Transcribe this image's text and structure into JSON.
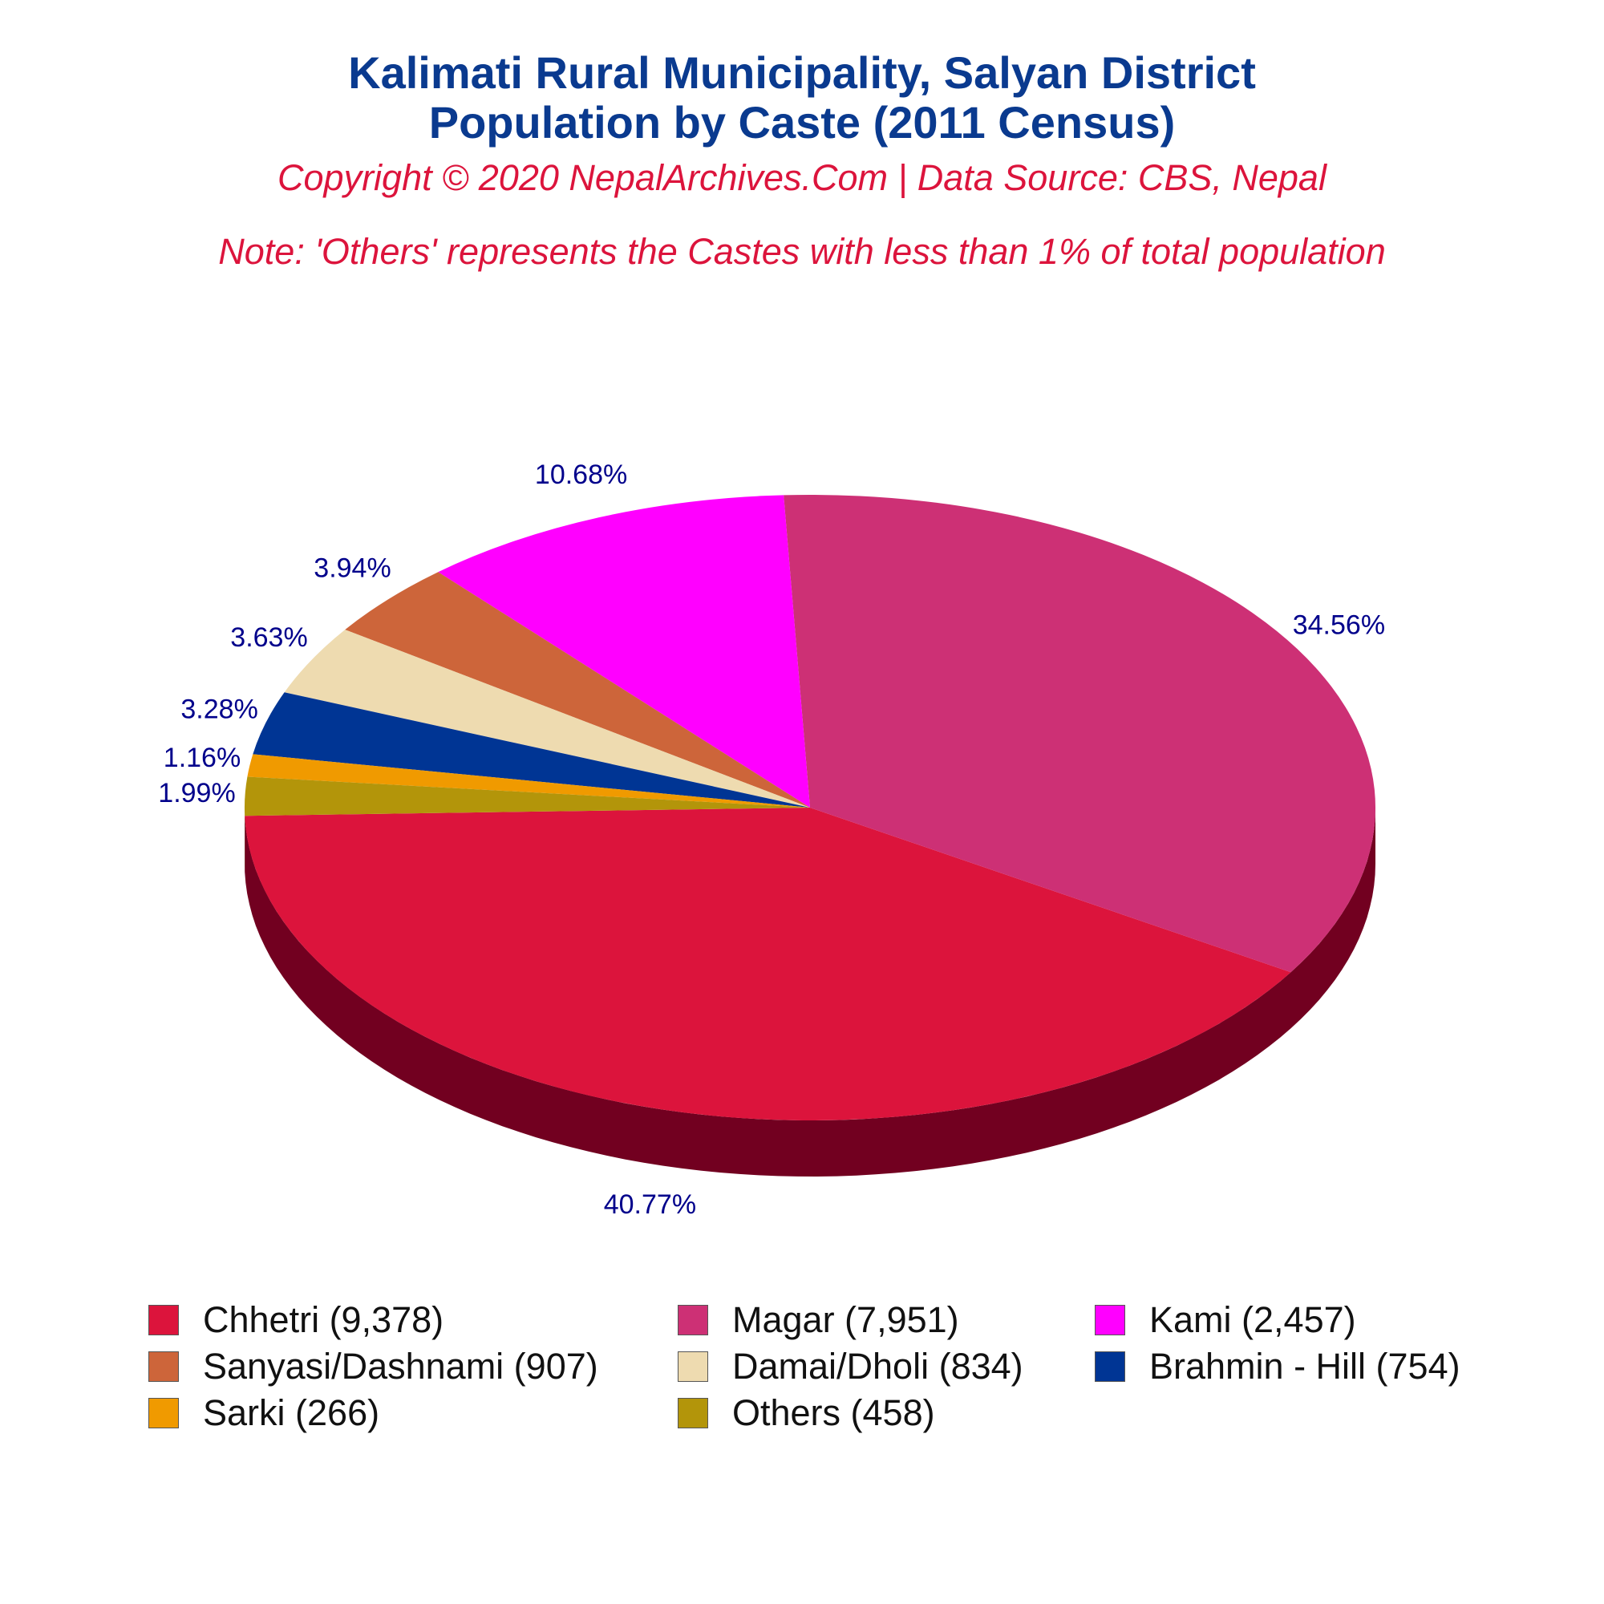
{
  "header": {
    "title_line1": "Kalimati Rural Municipality, Salyan District",
    "title_line2": "Population by Caste (2011 Census)",
    "copyright": "Copyright © 2020 NepalArchives.Com | Data Source: CBS, Nepal",
    "note": "Note: 'Others' represents the Castes with less than 1% of total population"
  },
  "chart_data": {
    "type": "pie",
    "style": "3d",
    "slices": [
      {
        "name": "Chhetri",
        "value": 9378,
        "percent_label": "40.77%",
        "color": "#dc143c",
        "side_color": "#720020"
      },
      {
        "name": "Magar",
        "value": 7951,
        "percent_label": "34.56%",
        "color": "#cd3075",
        "side_color": "#720020"
      },
      {
        "name": "Kami",
        "value": 2457,
        "percent_label": "10.68%",
        "color": "#ff00ff",
        "side_color": "#a600a6"
      },
      {
        "name": "Sanyasi/Dashnami",
        "value": 907,
        "percent_label": "3.94%",
        "color": "#cd653a",
        "side_color": "#7a1800"
      },
      {
        "name": "Damai/Dholi",
        "value": 834,
        "percent_label": "3.63%",
        "color": "#eedbb0",
        "side_color": "#8a7a50"
      },
      {
        "name": "Brahmin - Hill",
        "value": 754,
        "percent_label": "3.28%",
        "color": "#003594",
        "side_color": "#001a50"
      },
      {
        "name": "Sarki",
        "value": 266,
        "percent_label": "1.16%",
        "color": "#f09a00",
        "side_color": "#8a5500"
      },
      {
        "name": "Others",
        "value": 458,
        "percent_label": "1.99%",
        "color": "#b3950a",
        "side_color": "#6a5800"
      }
    ],
    "legend": {
      "placement": "bottom",
      "items": [
        {
          "label": "Chhetri (9,378)",
          "color": "#dc143c"
        },
        {
          "label": "Magar (7,951)",
          "color": "#cd3075"
        },
        {
          "label": "Kami (2,457)",
          "color": "#ff00ff"
        },
        {
          "label": "Sanyasi/Dashnami (907)",
          "color": "#cd653a"
        },
        {
          "label": "Damai/Dholi (834)",
          "color": "#eedbb0"
        },
        {
          "label": "Brahmin - Hill (754)",
          "color": "#003594"
        },
        {
          "label": "Sarki (266)",
          "color": "#f09a00"
        },
        {
          "label": "Others (458)",
          "color": "#b3950a"
        }
      ]
    }
  },
  "colors": {
    "title": "#0a3a8f",
    "subtitle": "#dc143c",
    "data_label": "#00008b"
  }
}
